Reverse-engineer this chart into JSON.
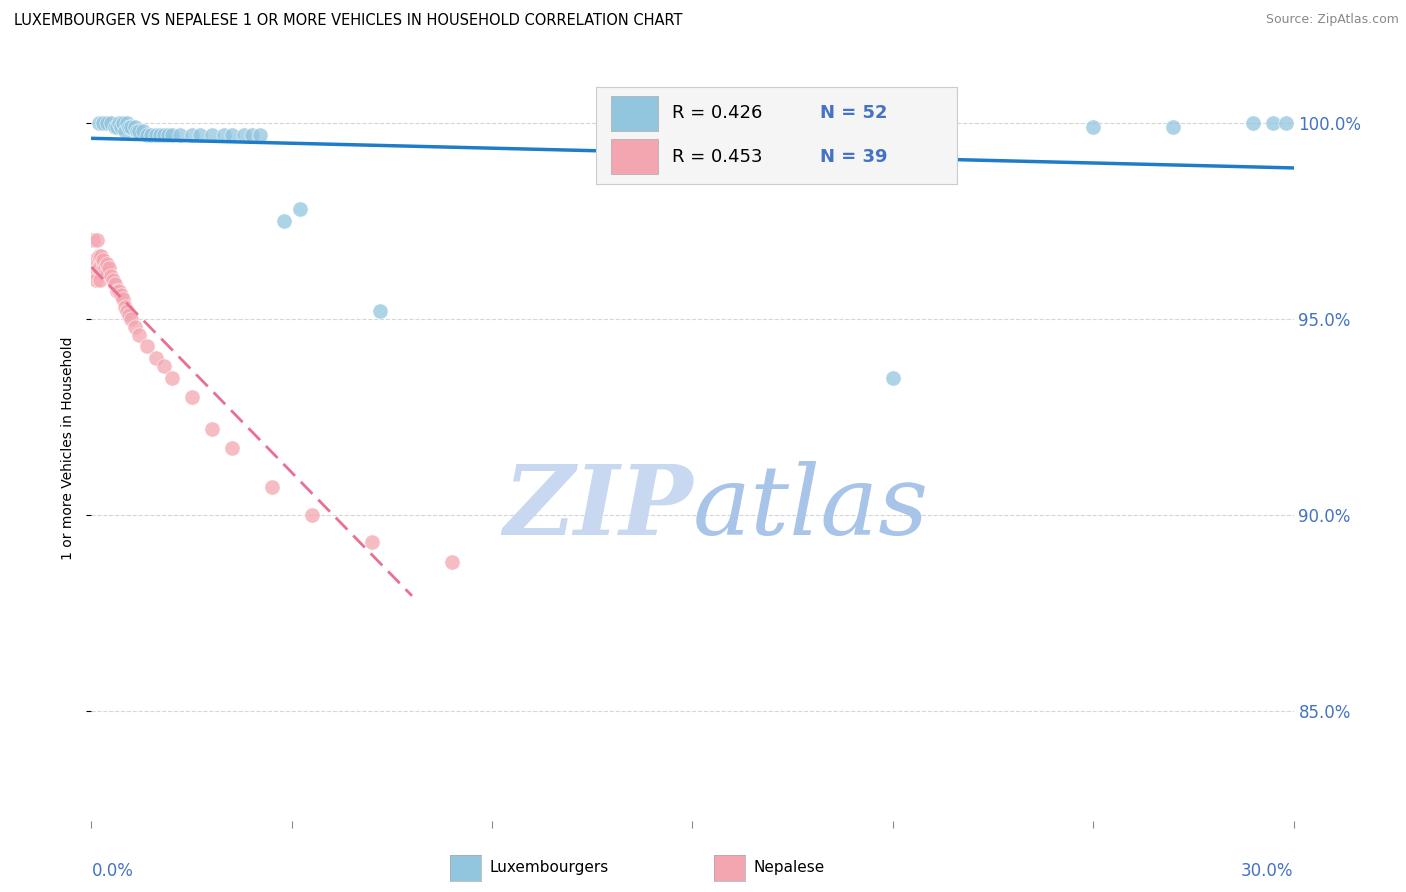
{
  "title": "LUXEMBOURGER VS NEPALESE 1 OR MORE VEHICLES IN HOUSEHOLD CORRELATION CHART",
  "source": "Source: ZipAtlas.com",
  "ylabel": "1 or more Vehicles in Household",
  "y_ticks": [
    0.85,
    0.9,
    0.95,
    1.0
  ],
  "y_tick_labels": [
    "85.0%",
    "90.0%",
    "95.0%",
    "100.0%"
  ],
  "xlim": [
    0.0,
    30.0
  ],
  "ylim": [
    0.822,
    1.012
  ],
  "lux_color": "#92C5DE",
  "nep_color": "#F4A6B0",
  "lux_line_color": "#1E7CC8",
  "nep_line_color": "#E87090",
  "lux_R": 0.426,
  "lux_N": 52,
  "nep_R": 0.453,
  "nep_N": 39,
  "watermark_zip": "ZIP",
  "watermark_atlas": "atlas",
  "watermark_color": "#C8D8F0",
  "axis_color": "#4472C4",
  "lux_x": [
    0.15,
    0.25,
    0.3,
    0.4,
    0.5,
    0.55,
    0.6,
    0.65,
    0.7,
    0.75,
    0.8,
    0.85,
    0.9,
    0.95,
    1.0,
    1.05,
    1.1,
    1.15,
    1.2,
    1.3,
    1.4,
    1.5,
    1.6,
    1.7,
    1.8,
    1.9,
    2.0,
    2.2,
    2.4,
    2.6,
    2.8,
    3.0,
    3.5,
    4.0,
    4.5,
    5.0,
    5.5,
    6.0,
    7.0,
    7.5,
    8.0,
    9.0,
    10.0,
    11.0,
    12.0,
    20.0,
    24.0,
    26.0,
    28.0,
    29.5,
    29.7,
    29.9
  ],
  "lux_y": [
    1.0,
    1.0,
    1.0,
    1.0,
    0.999,
    0.999,
    1.0,
    0.999,
    0.999,
    1.0,
    0.999,
    0.998,
    0.999,
    0.997,
    0.999,
    0.998,
    0.998,
    0.997,
    0.998,
    0.998,
    0.997,
    0.998,
    0.997,
    0.998,
    0.997,
    0.997,
    0.998,
    0.998,
    0.998,
    0.998,
    0.998,
    0.997,
    0.997,
    0.997,
    0.997,
    0.972,
    0.978,
    0.98,
    0.94,
    0.972,
    0.975,
    0.972,
    0.981,
    0.99,
    0.999,
    0.94,
    0.999,
    0.999,
    1.0,
    1.0,
    1.0,
    1.0
  ],
  "nep_x": [
    0.05,
    0.08,
    0.1,
    0.12,
    0.15,
    0.18,
    0.2,
    0.22,
    0.25,
    0.28,
    0.3,
    0.35,
    0.4,
    0.45,
    0.5,
    0.55,
    0.6,
    0.65,
    0.7,
    0.75,
    0.8,
    0.9,
    1.0,
    1.1,
    1.2,
    1.3,
    1.5,
    1.7,
    1.9,
    2.0,
    2.5,
    3.0,
    3.5,
    4.0,
    5.0,
    6.0,
    7.0,
    1.6,
    2.2
  ],
  "nep_y": [
    0.973,
    0.968,
    0.963,
    0.958,
    0.972,
    0.968,
    0.963,
    0.96,
    0.965,
    0.96,
    0.964,
    0.965,
    0.962,
    0.958,
    0.96,
    0.957,
    0.955,
    0.952,
    0.95,
    0.947,
    0.947,
    0.945,
    0.94,
    0.938,
    0.935,
    0.933,
    0.927,
    0.923,
    0.918,
    0.913,
    0.905,
    0.897,
    0.892,
    0.888,
    0.888,
    0.89,
    0.895,
    0.925,
    0.91
  ]
}
